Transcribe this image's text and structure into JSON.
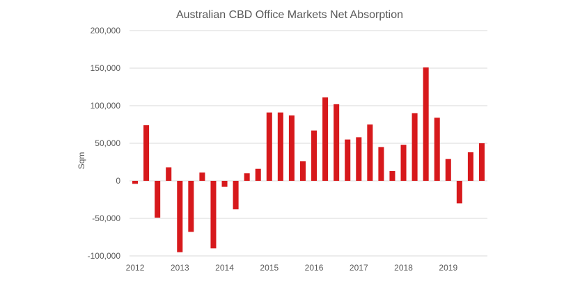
{
  "chart_data": {
    "type": "bar",
    "title": "Australian CBD Office Markets Net Absorption",
    "xlabel": "",
    "ylabel": "Sqm",
    "ylim": [
      -100000,
      200000
    ],
    "yticks": [
      200000,
      150000,
      100000,
      50000,
      0,
      -50000,
      -100000
    ],
    "ytick_labels": [
      "200,000",
      "150,000",
      "100,000",
      "50,000",
      "0",
      "-50,000",
      "-100,000"
    ],
    "xtick_labels": [
      "2012",
      "2013",
      "2014",
      "2015",
      "2016",
      "2017",
      "2018",
      "2019"
    ],
    "bar_color": "#d7191c",
    "grid": true,
    "legend": "none",
    "categories": [
      "2012 Q1",
      "2012 Q2",
      "2012 Q3",
      "2012 Q4",
      "2013 Q1",
      "2013 Q2",
      "2013 Q3",
      "2013 Q4",
      "2014 Q1",
      "2014 Q2",
      "2014 Q3",
      "2014 Q4",
      "2015 Q1",
      "2015 Q2",
      "2015 Q3",
      "2015 Q4",
      "2016 Q1",
      "2016 Q2",
      "2016 Q3",
      "2016 Q4",
      "2017 Q1",
      "2017 Q2",
      "2017 Q3",
      "2017 Q4",
      "2018 Q1",
      "2018 Q2",
      "2018 Q3",
      "2018 Q4",
      "2019 Q1",
      "2019 Q2",
      "2019 Q3",
      "2019 Q4"
    ],
    "values": [
      -4000,
      74000,
      -49000,
      18000,
      -95000,
      -68000,
      11000,
      -90000,
      -8000,
      -38000,
      10000,
      16000,
      91000,
      91000,
      87000,
      26000,
      67000,
      111000,
      102000,
      55000,
      58000,
      75000,
      45000,
      13000,
      48000,
      90000,
      151000,
      84000,
      29000,
      -30000,
      38000,
      50000
    ]
  }
}
